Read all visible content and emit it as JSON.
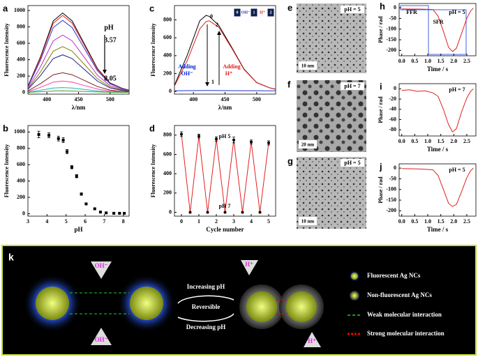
{
  "chart_data": [
    {
      "type": "line",
      "panel": "a",
      "x_label": "λ/nm",
      "y_label": "Fluorescence Intensity",
      "x": [
        370,
        390,
        410,
        425,
        440,
        460,
        480,
        500,
        520,
        530
      ],
      "series": [
        {
          "color": "#000000",
          "values": [
            78,
            437,
            873,
            970,
            873,
            582,
            291,
            116,
            49,
            29
          ]
        },
        {
          "color": "#e02020",
          "values": [
            75,
            423,
            846,
            940,
            846,
            564,
            282,
            113,
            47,
            28
          ]
        },
        {
          "color": "#2030d0",
          "values": [
            70,
            396,
            792,
            880,
            792,
            528,
            264,
            106,
            44,
            26
          ]
        },
        {
          "color": "#c030c0",
          "values": [
            56,
            315,
            630,
            700,
            630,
            420,
            210,
            84,
            35,
            21
          ]
        },
        {
          "color": "#808000",
          "values": [
            45,
            252,
            504,
            560,
            504,
            336,
            168,
            67,
            28,
            17
          ]
        },
        {
          "color": "#202080",
          "values": [
            37,
            207,
            414,
            460,
            414,
            276,
            138,
            55,
            23,
            14
          ]
        },
        {
          "color": "#802020",
          "values": [
            19,
            108,
            216,
            240,
            216,
            144,
            72,
            29,
            12,
            7
          ]
        },
        {
          "color": "#ff40a0",
          "values": [
            11,
            63,
            126,
            140,
            126,
            84,
            42,
            17,
            7,
            4
          ]
        },
        {
          "color": "#20b0b0",
          "values": [
            5,
            27,
            54,
            60,
            54,
            36,
            18,
            7,
            3,
            2
          ]
        },
        {
          "color": "#40a040",
          "values": [
            2,
            9,
            18,
            20,
            18,
            12,
            6,
            2,
            1,
            1
          ]
        }
      ],
      "xlim": [
        370,
        530
      ],
      "xticks": [
        400,
        450,
        500
      ],
      "ylim": [
        -20,
        1060
      ],
      "yticks": [
        0,
        200,
        400,
        600,
        800,
        1000
      ],
      "annotations": [
        "pH",
        "3.57",
        "8.05"
      ]
    },
    {
      "type": "scatter",
      "panel": "b",
      "x_label": "pH",
      "y_label": "Fluorescence Intensity",
      "x": [
        3.57,
        4.1,
        4.6,
        4.85,
        5.05,
        5.3,
        5.55,
        5.8,
        6.05,
        6.5,
        6.8,
        7.1,
        7.5,
        7.8,
        8.05
      ],
      "series": [
        {
          "color": "#000000",
          "values": [
            970,
            960,
            920,
            900,
            760,
            570,
            460,
            240,
            120,
            60,
            20,
            10,
            5,
            5,
            5
          ],
          "errors": [
            40,
            30,
            30,
            30,
            25,
            20,
            20,
            15,
            10,
            8,
            5,
            5,
            5,
            5,
            5
          ]
        }
      ],
      "xlim": [
        3,
        8.3
      ],
      "xticks": [
        3,
        4,
        5,
        6,
        7,
        8
      ],
      "ylim": [
        -30,
        1080
      ],
      "yticks": [
        0,
        200,
        400,
        600,
        800,
        1000
      ],
      "annotations": []
    },
    {
      "type": "line",
      "panel": "c",
      "x_label": "λ/nm",
      "y_label": "Fluorescence Intensity",
      "x": [
        370,
        390,
        410,
        420,
        425,
        440,
        460,
        480,
        500,
        520,
        530
      ],
      "series": [
        {
          "color": "#000000",
          "values": [
            70,
            400,
            790,
            850,
            840,
            740,
            500,
            250,
            100,
            42,
            25
          ]
        },
        {
          "color": "#e02020",
          "values": [
            60,
            340,
            700,
            780,
            790,
            720,
            490,
            245,
            98,
            41,
            24
          ]
        },
        {
          "color": "#2030d0",
          "values": [
            8,
            9,
            10,
            11,
            11,
            10,
            9,
            8,
            8,
            7,
            7
          ]
        }
      ],
      "xlim": [
        370,
        530
      ],
      "xticks": [
        400,
        450,
        500
      ],
      "ylim": [
        -30,
        960
      ],
      "yticks": [
        0,
        200,
        400,
        600,
        800
      ],
      "annotations": [
        "0",
        "2",
        "1",
        "Adding",
        "OH⁻",
        "Adding",
        "H⁺"
      ],
      "inset": [
        "0",
        "OH⁻",
        "1",
        "H⁺",
        "2"
      ]
    },
    {
      "type": "line",
      "panel": "d",
      "x_label": "Cycle number",
      "y_label": "Fluorescence Intensity",
      "markers": true,
      "x": [
        0,
        0.5,
        1,
        1.5,
        2,
        2.5,
        3,
        3.5,
        4,
        4.5,
        5
      ],
      "series": [
        {
          "color": "#e02020",
          "values": [
            810,
            0,
            790,
            0,
            760,
            0,
            750,
            0,
            730,
            0,
            720
          ],
          "errors": [
            25,
            null,
            20,
            null,
            22,
            null,
            30,
            null,
            20,
            null,
            22
          ]
        }
      ],
      "xlim": [
        -0.4,
        5.4
      ],
      "xticks": [
        0,
        1,
        2,
        3,
        4,
        5
      ],
      "ylim": [
        -40,
        900
      ],
      "yticks": [
        0,
        200,
        400,
        600,
        800
      ],
      "annotations": [
        "pH 5",
        "pH 7"
      ]
    },
    {
      "type": "line",
      "panel": "h",
      "x_label": "Time / s",
      "y_label": "Phase / rad",
      "x": [
        0,
        0.3,
        0.6,
        0.9,
        1.2,
        1.4,
        1.6,
        1.8,
        1.95,
        2.1,
        2.3,
        2.5,
        2.65,
        2.75
      ],
      "series": [
        {
          "color": "#e02020",
          "values": [
            -5,
            -6,
            -6,
            -7,
            -8,
            -40,
            -110,
            -185,
            -205,
            -190,
            -120,
            -50,
            -15,
            -2
          ]
        }
      ],
      "xlim": [
        -0.1,
        2.85
      ],
      "xticks": [
        {
          "value": 0,
          "label": "0.0"
        },
        0.5,
        {
          "value": 1,
          "label": "1.0"
        },
        1.5,
        {
          "value": 2,
          "label": "2.0"
        },
        2.5
      ],
      "ylim": [
        -225,
        20
      ],
      "yticks": [
        0,
        -50,
        -100,
        -150,
        -200
      ],
      "annotations": [
        "FFR",
        "pH = 5",
        "SFR"
      ]
    },
    {
      "type": "line",
      "panel": "i",
      "x_label": "Time / s",
      "y_label": "Phase / rad",
      "x": [
        0,
        0.3,
        0.6,
        0.9,
        1.2,
        1.4,
        1.6,
        1.8,
        1.95,
        2.1,
        2.3,
        2.5,
        2.65,
        2.75
      ],
      "series": [
        {
          "color": "#e02020",
          "values": [
            -3,
            -2,
            -5,
            -4,
            -8,
            -15,
            -40,
            -70,
            -84,
            -78,
            -45,
            -18,
            -5,
            0
          ]
        }
      ],
      "xlim": [
        -0.1,
        2.85
      ],
      "xticks": [
        {
          "value": 0,
          "label": "0.0"
        },
        0.5,
        {
          "value": 1,
          "label": "1.0"
        },
        1.5,
        {
          "value": 2,
          "label": "2.0"
        },
        2.5
      ],
      "ylim": [
        -92,
        10
      ],
      "yticks": [
        0,
        -20,
        -40,
        -60,
        -80
      ],
      "annotations": [
        "pH = 7"
      ]
    },
    {
      "type": "line",
      "panel": "j",
      "x_label": "Time / s",
      "y_label": "Phase / rad",
      "x": [
        0,
        0.3,
        0.6,
        0.9,
        1.2,
        1.4,
        1.6,
        1.8,
        1.95,
        2.1,
        2.3,
        2.5,
        2.65,
        2.75
      ],
      "series": [
        {
          "color": "#e02020",
          "values": [
            -2,
            -3,
            -4,
            -5,
            -8,
            -35,
            -100,
            -165,
            -180,
            -170,
            -110,
            -45,
            -12,
            0
          ]
        }
      ],
      "xlim": [
        -0.1,
        2.85
      ],
      "xticks": [
        {
          "value": 0,
          "label": "0.0"
        },
        0.5,
        {
          "value": 1,
          "label": "1.0"
        },
        1.5,
        {
          "value": 2,
          "label": "2.0"
        },
        2.5
      ],
      "ylim": [
        -225,
        20
      ],
      "yticks": [
        0,
        -50,
        -100,
        -150,
        -200
      ],
      "annotations": [
        "pH = 5"
      ]
    }
  ],
  "images": [
    {
      "panel": "e",
      "label": "pH = 5",
      "scale": "10 nm"
    },
    {
      "panel": "f",
      "label": "pH = 7",
      "scale": "20 nm"
    },
    {
      "panel": "g",
      "label": "pH = 5",
      "scale": "10 nm"
    }
  ],
  "diagram": {
    "panel": "k",
    "ions": [
      "OH⁻",
      "OH⁻",
      "H⁺",
      "H⁺"
    ],
    "arrows": [
      "Increasing pH",
      "Reversible",
      "Decreasing pH"
    ],
    "legend": [
      "Fluorescent Ag NCs",
      "Non-fluorescent Ag NCs",
      "Weak molecular interaction",
      "Strong molecular interaction"
    ]
  }
}
